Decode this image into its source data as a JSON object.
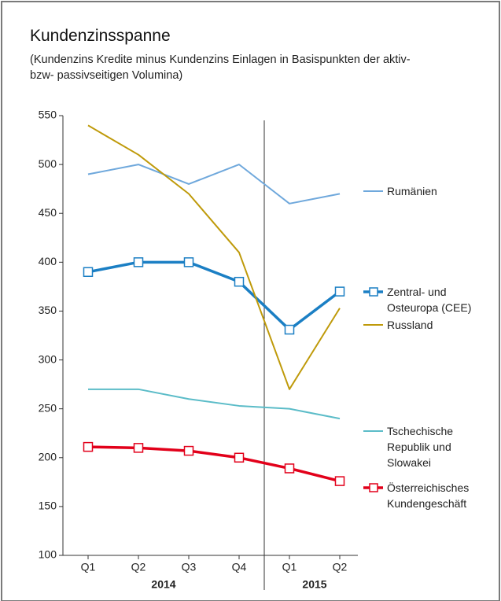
{
  "chart_data": {
    "type": "line",
    "title": "Kundenzinsspanne",
    "subtitle": "(Kundenzins Kredite minus Kundenzins Einlagen in Basispunkten der aktiv- bzw- passivseitigen Volumina)",
    "categories": [
      "Q1",
      "Q2",
      "Q3",
      "Q4",
      "Q1",
      "Q2"
    ],
    "x_groups": [
      {
        "label": "2014",
        "count": 4
      },
      {
        "label": "2015",
        "count": 2
      }
    ],
    "ylim": [
      100,
      550
    ],
    "yticks": [
      100,
      150,
      200,
      250,
      300,
      350,
      400,
      450,
      500,
      550
    ],
    "series": [
      {
        "name": "Rumänien",
        "color": "#6fa8dc",
        "values": [
          490,
          500,
          480,
          500,
          460,
          470
        ]
      },
      {
        "name": "Zentral- und Osteuropa (CEE)",
        "color": "#1b7fc4",
        "marker": "square",
        "values": [
          390,
          400,
          400,
          380,
          331,
          370
        ]
      },
      {
        "name": "Russland",
        "color": "#bf9a0a",
        "values": [
          540,
          510,
          470,
          410,
          270,
          353
        ]
      },
      {
        "name": "Tschechische Republik und Slowakei",
        "color": "#5bbcc8",
        "values": [
          270,
          270,
          260,
          253,
          250,
          240
        ]
      },
      {
        "name": "Österreichisches Kundengeschäft",
        "color": "#e2001a",
        "marker": "square",
        "values": [
          211,
          210,
          207,
          200,
          189,
          176
        ]
      }
    ]
  }
}
